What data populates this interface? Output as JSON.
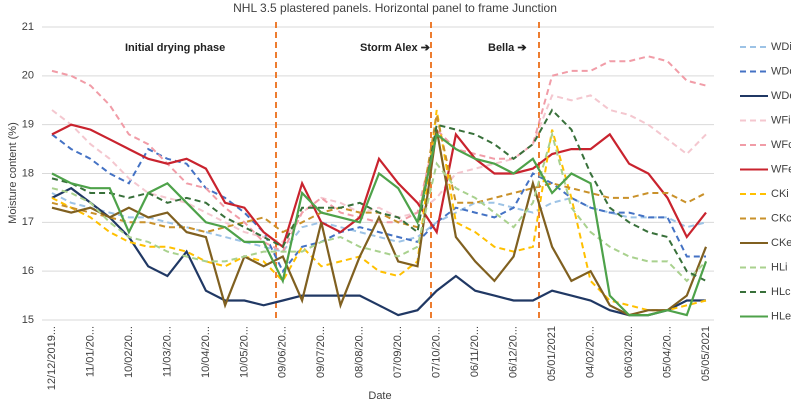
{
  "chart_data": {
    "type": "line",
    "title": "NHL 3.5 plastered panels. Horizontal panel to  frame Junction",
    "x_label": "Date",
    "y_label": "Moisture content (%)",
    "annotations": [
      "Initial drying phase",
      "Storm Alex ➔",
      "Bella ➔"
    ],
    "categories": [
      "12/12/2019...",
      null,
      "11/01/20...",
      null,
      "10/02/20...",
      null,
      "11/03/20...",
      null,
      "10/04/20...",
      null,
      "10/05/20...",
      null,
      "09/06/20...",
      null,
      "09/07/20...",
      null,
      "08/08/20...",
      null,
      "07/09/20...",
      null,
      "07/10/20...",
      null,
      "06/11/20...",
      null,
      "06/12/20...",
      null,
      "05/01/2021",
      null,
      "04/02/20...",
      null,
      "06/03/20...",
      null,
      "05/04/20...",
      null,
      "05/05/2021"
    ],
    "ylim": [
      15,
      21
    ],
    "yticks": [
      15,
      16,
      17,
      18,
      19,
      20,
      21
    ],
    "grid": true,
    "legend": "right",
    "series": [
      {
        "name": "WDi",
        "color": "#9dc3e6",
        "dashed": true,
        "values": [
          17.6,
          17.4,
          17.3,
          17.2,
          17.1,
          17.1,
          17.0,
          16.9,
          16.8,
          16.7,
          16.6,
          16.5,
          16.4,
          16.9,
          17.0,
          16.9,
          16.8,
          16.7,
          16.6,
          16.7,
          17.0,
          17.2,
          17.4,
          17.4,
          17.3,
          17.2,
          17.4,
          17.5,
          17.3,
          17.2,
          17.1,
          17.1,
          17.1,
          16.9,
          17.0
        ]
      },
      {
        "name": "WDc",
        "color": "#4472c4",
        "dashed": true,
        "values": [
          18.8,
          18.5,
          18.3,
          18.0,
          17.8,
          18.5,
          18.3,
          18.2,
          17.7,
          17.5,
          17.2,
          16.8,
          16.0,
          16.5,
          16.6,
          16.8,
          16.9,
          16.8,
          16.7,
          16.6,
          17.0,
          17.3,
          17.2,
          17.1,
          17.3,
          18.0,
          17.8,
          17.5,
          17.3,
          17.2,
          17.2,
          17.1,
          17.1,
          16.3,
          16.3
        ]
      },
      {
        "name": "WDe",
        "color": "#203864",
        "dashed": false,
        "values": [
          17.5,
          17.7,
          17.4,
          17.1,
          16.7,
          16.1,
          15.9,
          16.4,
          15.6,
          15.4,
          15.4,
          15.3,
          15.4,
          15.5,
          15.5,
          15.5,
          15.5,
          15.3,
          15.1,
          15.2,
          15.6,
          15.9,
          15.6,
          15.5,
          15.4,
          15.4,
          15.6,
          15.5,
          15.4,
          15.2,
          15.1,
          15.1,
          15.2,
          15.4,
          15.4
        ]
      },
      {
        "name": "WFi",
        "color": "#f4c7cf",
        "dashed": true,
        "values": [
          19.3,
          19.0,
          18.6,
          18.3,
          17.9,
          17.6,
          17.5,
          17.4,
          17.2,
          17.0,
          16.8,
          16.7,
          16.6,
          17.2,
          17.5,
          17.4,
          17.2,
          17.3,
          17.1,
          17.2,
          17.5,
          18.0,
          18.1,
          18.2,
          18.3,
          18.6,
          19.6,
          19.5,
          19.6,
          19.3,
          19.2,
          19.0,
          18.7,
          18.4,
          18.8
        ]
      },
      {
        "name": "WFc",
        "color": "#f19ca7",
        "dashed": true,
        "values": [
          20.1,
          20.0,
          19.8,
          19.4,
          18.8,
          18.6,
          18.2,
          17.8,
          17.7,
          17.3,
          17.0,
          16.6,
          16.4,
          17.2,
          17.5,
          17.2,
          17.1,
          17.0,
          17.0,
          17.2,
          18.9,
          18.5,
          18.4,
          18.3,
          18.3,
          18.6,
          20.0,
          20.1,
          20.1,
          20.3,
          20.3,
          20.4,
          20.3,
          19.9,
          19.8
        ]
      },
      {
        "name": "WFe",
        "color": "#c9232e",
        "dashed": false,
        "values": [
          18.8,
          19.0,
          18.9,
          18.7,
          18.5,
          18.3,
          18.2,
          18.3,
          18.1,
          17.4,
          17.3,
          16.8,
          16.5,
          17.8,
          17.0,
          16.8,
          17.1,
          18.3,
          17.8,
          17.4,
          16.8,
          18.8,
          18.3,
          18.0,
          18.0,
          18.1,
          18.4,
          18.5,
          18.5,
          18.8,
          18.2,
          18.0,
          17.5,
          16.7,
          17.2
        ]
      },
      {
        "name": "CKi",
        "color": "#ffc000",
        "dashed": true,
        "values": [
          17.5,
          17.3,
          17.1,
          16.8,
          16.6,
          16.5,
          16.5,
          16.4,
          16.2,
          16.1,
          16.3,
          16.2,
          15.8,
          16.5,
          16.1,
          16.2,
          16.3,
          16.0,
          15.9,
          16.2,
          19.3,
          17.0,
          16.8,
          16.5,
          16.4,
          16.5,
          18.9,
          17.5,
          15.8,
          15.4,
          15.3,
          15.2,
          15.2,
          15.3,
          15.4
        ]
      },
      {
        "name": "CKc",
        "color": "#c9912a",
        "dashed": true,
        "values": [
          17.4,
          17.3,
          17.2,
          17.1,
          17.0,
          17.0,
          16.9,
          16.9,
          16.8,
          16.9,
          17.0,
          17.1,
          16.8,
          17.0,
          17.2,
          17.3,
          17.2,
          17.2,
          17.0,
          16.9,
          19.2,
          17.4,
          17.4,
          17.5,
          17.6,
          17.7,
          17.8,
          17.7,
          17.6,
          17.5,
          17.5,
          17.6,
          17.6,
          17.4,
          17.6
        ]
      },
      {
        "name": "CKe",
        "color": "#806020",
        "dashed": false,
        "values": [
          17.3,
          17.2,
          17.3,
          17.1,
          17.3,
          17.1,
          17.2,
          16.8,
          16.7,
          15.3,
          16.3,
          16.1,
          16.3,
          15.4,
          17.0,
          15.3,
          16.3,
          17.1,
          16.2,
          16.1,
          18.9,
          16.7,
          16.2,
          15.8,
          16.3,
          17.8,
          16.5,
          15.8,
          16.0,
          15.3,
          15.1,
          15.2,
          15.2,
          15.5,
          16.5
        ]
      },
      {
        "name": "HLi",
        "color": "#a9d18e",
        "dashed": true,
        "values": [
          17.7,
          17.6,
          17.4,
          17.0,
          16.7,
          16.6,
          16.4,
          16.3,
          16.2,
          16.2,
          16.3,
          16.4,
          16.4,
          16.4,
          16.6,
          16.7,
          16.5,
          16.4,
          16.3,
          16.5,
          18.2,
          17.7,
          17.5,
          17.2,
          16.9,
          17.4,
          18.8,
          17.3,
          16.8,
          16.5,
          16.3,
          16.2,
          16.2,
          15.8,
          16.2
        ]
      },
      {
        "name": "HLc",
        "color": "#38703a",
        "dashed": true,
        "values": [
          17.9,
          17.8,
          17.6,
          17.6,
          17.5,
          17.6,
          17.4,
          17.5,
          17.4,
          17.1,
          16.9,
          16.7,
          16.5,
          17.3,
          17.3,
          17.3,
          17.4,
          17.2,
          17.1,
          16.8,
          19.0,
          18.9,
          18.8,
          18.6,
          18.3,
          18.6,
          19.3,
          18.9,
          18.0,
          17.3,
          17.0,
          16.8,
          16.7,
          16.0,
          15.8
        ]
      },
      {
        "name": "HLe",
        "color": "#4ea24a",
        "dashed": false,
        "values": [
          18.0,
          17.8,
          17.7,
          17.7,
          16.8,
          17.6,
          17.8,
          17.4,
          17.0,
          16.9,
          16.6,
          16.6,
          15.8,
          17.6,
          17.2,
          17.1,
          17.0,
          18.0,
          17.7,
          17.0,
          18.8,
          18.5,
          18.3,
          18.2,
          18.0,
          18.3,
          17.6,
          18.0,
          17.8,
          15.5,
          15.1,
          15.1,
          15.2,
          15.1,
          16.2
        ]
      }
    ]
  }
}
